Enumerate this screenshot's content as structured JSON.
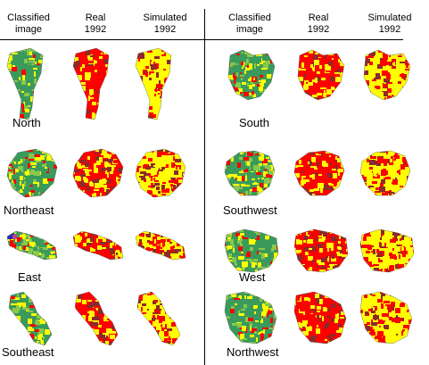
{
  "headers": {
    "classified": "Classified\nimage",
    "real": "Real\n1992",
    "simulated": "Simulated\n1992"
  },
  "columns": [
    "classified",
    "real",
    "simulated"
  ],
  "regions": [
    {
      "name": "North"
    },
    {
      "name": "Northeast"
    },
    {
      "name": "East"
    },
    {
      "name": "Southeast"
    },
    {
      "name": "South"
    },
    {
      "name": "Southwest"
    },
    {
      "name": "West"
    },
    {
      "name": "Northwest"
    }
  ],
  "legend_colors": {
    "urban": "#ff0000",
    "agriculture": "#ffff00",
    "vegetation": "#3a9a5c",
    "light_green": "#88c84a",
    "water": "#1e2db4",
    "other": "#c83c8c"
  }
}
